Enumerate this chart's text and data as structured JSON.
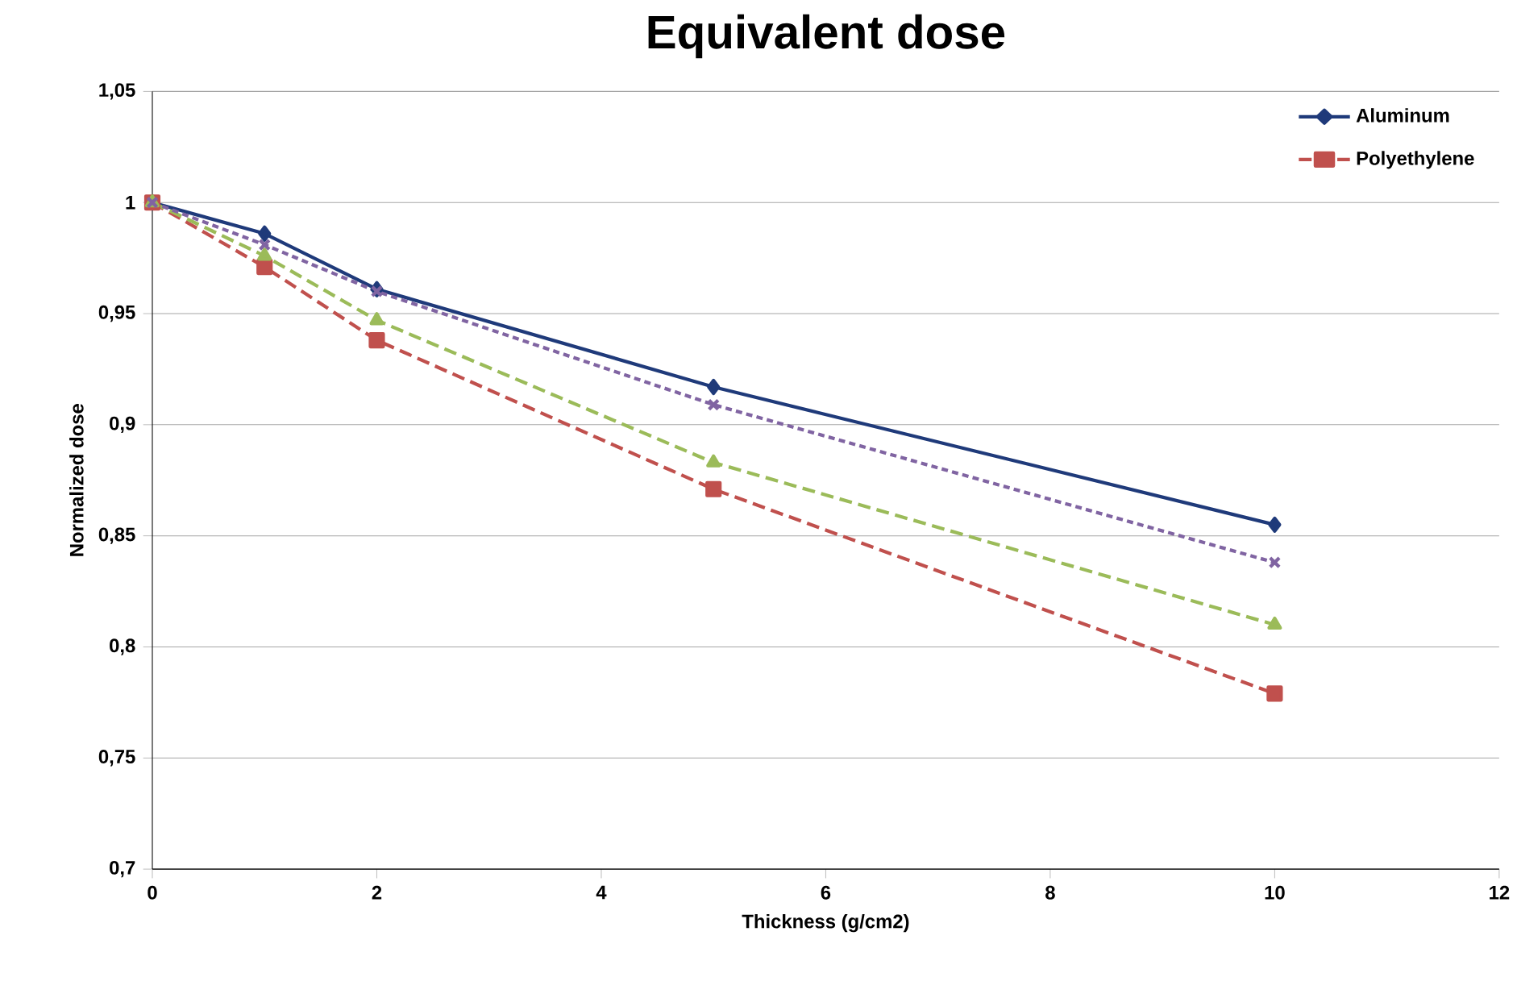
{
  "chart_data": {
    "type": "line",
    "title": "Equivalent dose",
    "xlabel": "Thickness (g/cm2)",
    "ylabel": "Normalized dose",
    "x": [
      0,
      1,
      2,
      5,
      10
    ],
    "series": [
      {
        "name": "Aluminum",
        "color": "#1f3a7a",
        "marker": "diamond",
        "line_style": "solid",
        "values": [
          1,
          0.986,
          0.961,
          0.917,
          0.855
        ]
      },
      {
        "name": "Polyethylene",
        "color": "#c0504d",
        "marker": "square",
        "line_style": "dashed",
        "values": [
          1,
          0.971,
          0.938,
          0.871,
          0.779
        ]
      },
      {
        "color": "#9bbb59",
        "marker": "triangle",
        "line_style": "dashed",
        "values": [
          1,
          0.976,
          0.947,
          0.883,
          0.81
        ]
      },
      {
        "color": "#8064a2",
        "marker": "cross",
        "line_style": "dotted",
        "values": [
          1,
          0.981,
          0.96,
          0.909,
          0.838
        ]
      }
    ],
    "xlim": [
      0,
      12
    ],
    "xticks": [
      0,
      2,
      4,
      6,
      8,
      10,
      12
    ],
    "ylim": [
      0.7,
      1.05
    ],
    "yticks": [
      {
        "value": 0.7,
        "label": "0,7"
      },
      {
        "value": 0.75,
        "label": "0,75"
      },
      {
        "value": 0.8,
        "label": "0,8"
      },
      {
        "value": 0.85,
        "label": "0,85"
      },
      {
        "value": 0.9,
        "label": "0,9"
      },
      {
        "value": 0.95,
        "label": "0,95"
      },
      1,
      {
        "value": 1.05,
        "label": "1,05"
      }
    ],
    "grid": "y",
    "legend": "top right"
  }
}
